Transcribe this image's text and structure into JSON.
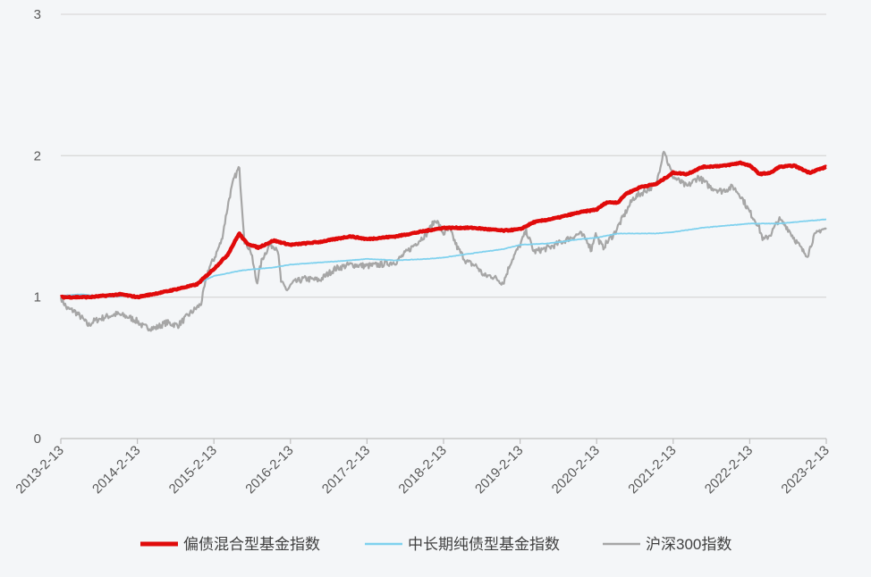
{
  "chart_data": {
    "type": "line",
    "title": "",
    "xlabel": "",
    "ylabel": "",
    "ylim": [
      0,
      3
    ],
    "yticks": [
      "0",
      "1",
      "2",
      "3"
    ],
    "xticks": [
      "2013-2-13",
      "2014-2-13",
      "2015-2-13",
      "2016-2-13",
      "2017-2-13",
      "2018-2-13",
      "2019-2-13",
      "2020-2-13",
      "2021-2-13",
      "2022-2-13",
      "2023-2-13"
    ],
    "x_range_years": [
      2013.12,
      2023.12
    ],
    "grid": "horizontal",
    "legend": "bottom",
    "series": [
      {
        "name": "偏债混合型基金指数",
        "color": "#e00b0b",
        "style": "bold",
        "points": [
          [
            2013.12,
            1.0
          ],
          [
            2013.5,
            1.0
          ],
          [
            2013.9,
            1.02
          ],
          [
            2014.12,
            1.0
          ],
          [
            2014.5,
            1.04
          ],
          [
            2014.9,
            1.09
          ],
          [
            2015.12,
            1.2
          ],
          [
            2015.3,
            1.3
          ],
          [
            2015.45,
            1.45
          ],
          [
            2015.55,
            1.38
          ],
          [
            2015.7,
            1.35
          ],
          [
            2015.9,
            1.4
          ],
          [
            2016.12,
            1.37
          ],
          [
            2016.5,
            1.39
          ],
          [
            2016.9,
            1.43
          ],
          [
            2017.12,
            1.41
          ],
          [
            2017.5,
            1.43
          ],
          [
            2017.9,
            1.47
          ],
          [
            2018.12,
            1.49
          ],
          [
            2018.5,
            1.49
          ],
          [
            2018.9,
            1.47
          ],
          [
            2019.12,
            1.48
          ],
          [
            2019.3,
            1.53
          ],
          [
            2019.6,
            1.56
          ],
          [
            2019.9,
            1.6
          ],
          [
            2020.12,
            1.62
          ],
          [
            2020.25,
            1.67
          ],
          [
            2020.4,
            1.67
          ],
          [
            2020.5,
            1.73
          ],
          [
            2020.7,
            1.78
          ],
          [
            2020.9,
            1.8
          ],
          [
            2021.12,
            1.88
          ],
          [
            2021.3,
            1.87
          ],
          [
            2021.5,
            1.92
          ],
          [
            2021.8,
            1.93
          ],
          [
            2022.0,
            1.95
          ],
          [
            2022.12,
            1.93
          ],
          [
            2022.25,
            1.87
          ],
          [
            2022.4,
            1.88
          ],
          [
            2022.5,
            1.92
          ],
          [
            2022.7,
            1.93
          ],
          [
            2022.9,
            1.88
          ],
          [
            2023.0,
            1.9
          ],
          [
            2023.12,
            1.92
          ]
        ]
      },
      {
        "name": "中长期纯债型基金指数",
        "color": "#7fd1ee",
        "style": "normal",
        "points": [
          [
            2013.12,
            1.01
          ],
          [
            2013.4,
            1.02
          ],
          [
            2013.7,
            1.0
          ],
          [
            2014.0,
            1.01
          ],
          [
            2014.12,
            1.0
          ],
          [
            2014.5,
            1.04
          ],
          [
            2014.9,
            1.09
          ],
          [
            2015.12,
            1.15
          ],
          [
            2015.5,
            1.19
          ],
          [
            2015.9,
            1.21
          ],
          [
            2016.12,
            1.23
          ],
          [
            2016.9,
            1.26
          ],
          [
            2017.12,
            1.27
          ],
          [
            2017.5,
            1.26
          ],
          [
            2017.9,
            1.27
          ],
          [
            2018.12,
            1.28
          ],
          [
            2018.5,
            1.31
          ],
          [
            2018.9,
            1.34
          ],
          [
            2019.12,
            1.37
          ],
          [
            2019.5,
            1.38
          ],
          [
            2019.9,
            1.41
          ],
          [
            2020.12,
            1.42
          ],
          [
            2020.4,
            1.45
          ],
          [
            2020.9,
            1.45
          ],
          [
            2021.12,
            1.46
          ],
          [
            2021.5,
            1.49
          ],
          [
            2021.9,
            1.51
          ],
          [
            2022.12,
            1.52
          ],
          [
            2022.5,
            1.52
          ],
          [
            2022.9,
            1.54
          ],
          [
            2023.12,
            1.55
          ]
        ]
      },
      {
        "name": "沪深300指数",
        "color": "#a6a6a6",
        "style": "normal",
        "points": [
          [
            2013.12,
            1.0
          ],
          [
            2013.2,
            0.92
          ],
          [
            2013.3,
            0.9
          ],
          [
            2013.4,
            0.85
          ],
          [
            2013.48,
            0.8
          ],
          [
            2013.55,
            0.83
          ],
          [
            2013.7,
            0.86
          ],
          [
            2013.85,
            0.88
          ],
          [
            2014.0,
            0.86
          ],
          [
            2014.12,
            0.83
          ],
          [
            2014.2,
            0.79
          ],
          [
            2014.35,
            0.78
          ],
          [
            2014.5,
            0.82
          ],
          [
            2014.65,
            0.8
          ],
          [
            2014.8,
            0.88
          ],
          [
            2014.95,
            0.95
          ],
          [
            2015.05,
            1.2
          ],
          [
            2015.12,
            1.27
          ],
          [
            2015.22,
            1.4
          ],
          [
            2015.32,
            1.7
          ],
          [
            2015.38,
            1.83
          ],
          [
            2015.45,
            1.92
          ],
          [
            2015.52,
            1.4
          ],
          [
            2015.6,
            1.33
          ],
          [
            2015.68,
            1.1
          ],
          [
            2015.75,
            1.27
          ],
          [
            2015.85,
            1.37
          ],
          [
            2015.95,
            1.35
          ],
          [
            2016.0,
            1.1
          ],
          [
            2016.08,
            1.05
          ],
          [
            2016.15,
            1.1
          ],
          [
            2016.3,
            1.13
          ],
          [
            2016.5,
            1.12
          ],
          [
            2016.7,
            1.2
          ],
          [
            2016.9,
            1.23
          ],
          [
            2017.12,
            1.22
          ],
          [
            2017.3,
            1.23
          ],
          [
            2017.5,
            1.25
          ],
          [
            2017.7,
            1.35
          ],
          [
            2017.9,
            1.45
          ],
          [
            2018.02,
            1.55
          ],
          [
            2018.12,
            1.45
          ],
          [
            2018.2,
            1.48
          ],
          [
            2018.3,
            1.35
          ],
          [
            2018.42,
            1.25
          ],
          [
            2018.55,
            1.22
          ],
          [
            2018.65,
            1.15
          ],
          [
            2018.75,
            1.15
          ],
          [
            2018.9,
            1.1
          ],
          [
            2019.0,
            1.25
          ],
          [
            2019.12,
            1.37
          ],
          [
            2019.2,
            1.47
          ],
          [
            2019.3,
            1.32
          ],
          [
            2019.5,
            1.35
          ],
          [
            2019.7,
            1.4
          ],
          [
            2019.9,
            1.45
          ],
          [
            2020.0,
            1.4
          ],
          [
            2020.05,
            1.33
          ],
          [
            2020.1,
            1.45
          ],
          [
            2020.2,
            1.35
          ],
          [
            2020.35,
            1.45
          ],
          [
            2020.5,
            1.6
          ],
          [
            2020.6,
            1.7
          ],
          [
            2020.75,
            1.75
          ],
          [
            2020.9,
            1.8
          ],
          [
            2021.0,
            2.05
          ],
          [
            2021.05,
            1.95
          ],
          [
            2021.12,
            1.85
          ],
          [
            2021.2,
            1.82
          ],
          [
            2021.3,
            1.78
          ],
          [
            2021.45,
            1.85
          ],
          [
            2021.6,
            1.78
          ],
          [
            2021.75,
            1.75
          ],
          [
            2021.9,
            1.78
          ],
          [
            2022.0,
            1.72
          ],
          [
            2022.12,
            1.6
          ],
          [
            2022.22,
            1.52
          ],
          [
            2022.3,
            1.4
          ],
          [
            2022.4,
            1.45
          ],
          [
            2022.5,
            1.55
          ],
          [
            2022.6,
            1.5
          ],
          [
            2022.72,
            1.4
          ],
          [
            2022.82,
            1.32
          ],
          [
            2022.88,
            1.3
          ],
          [
            2022.95,
            1.42
          ],
          [
            2023.05,
            1.48
          ],
          [
            2023.12,
            1.48
          ]
        ]
      }
    ]
  }
}
